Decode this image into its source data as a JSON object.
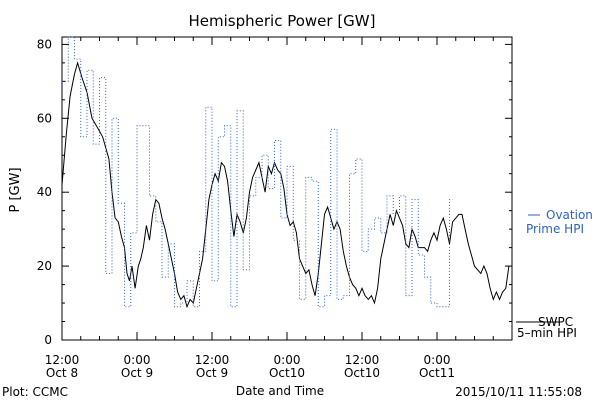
{
  "chart_data": {
    "type": "line",
    "title": "Hemispheric Power [GW]",
    "ylabel": "P [GW]",
    "xlabel": "Date and Time",
    "ylim": [
      0,
      82
    ],
    "yticks": [
      0,
      20,
      40,
      60,
      80
    ],
    "xlim": [
      0,
      72
    ],
    "x_unit": "hours after 2015-10-08 12:00",
    "xticks": [
      {
        "x": 0,
        "line1": "12:00",
        "line2": "Oct 8"
      },
      {
        "x": 12,
        "line1": "0:00",
        "line2": "Oct 9"
      },
      {
        "x": 24,
        "line1": "12:00",
        "line2": "Oct 9"
      },
      {
        "x": 36,
        "line1": "0:00",
        "line2": "Oct10"
      },
      {
        "x": 48,
        "line1": "12:00",
        "line2": "Oct10"
      },
      {
        "x": 60,
        "line1": "0:00",
        "line2": "Oct11"
      }
    ],
    "series": [
      {
        "name": "SWPC 5-min HPI",
        "label_line1": "SWPC",
        "label_line2": "5–min HPI",
        "color": "#000000",
        "style": "solid",
        "points": [
          [
            0,
            42
          ],
          [
            0.7,
            56
          ],
          [
            1.3,
            66
          ],
          [
            2,
            72
          ],
          [
            2.5,
            75
          ],
          [
            3.2,
            71
          ],
          [
            4,
            67
          ],
          [
            4.8,
            60
          ],
          [
            5.5,
            58
          ],
          [
            6.5,
            55
          ],
          [
            7.5,
            49
          ],
          [
            8,
            40
          ],
          [
            8.5,
            33
          ],
          [
            9,
            32
          ],
          [
            9.5,
            28
          ],
          [
            10,
            25
          ],
          [
            10.4,
            18
          ],
          [
            10.8,
            16
          ],
          [
            11.2,
            20
          ],
          [
            11.7,
            14
          ],
          [
            12.2,
            20
          ],
          [
            12.6,
            22
          ],
          [
            13,
            25
          ],
          [
            13.5,
            31
          ],
          [
            14,
            27
          ],
          [
            14.5,
            34
          ],
          [
            15,
            38
          ],
          [
            15.5,
            37
          ],
          [
            16,
            33
          ],
          [
            16.5,
            30
          ],
          [
            17,
            26
          ],
          [
            17.5,
            22
          ],
          [
            18,
            18
          ],
          [
            18.5,
            13
          ],
          [
            19,
            11
          ],
          [
            19.5,
            12
          ],
          [
            20,
            9
          ],
          [
            20.5,
            11
          ],
          [
            21,
            10
          ],
          [
            21.5,
            14
          ],
          [
            22,
            18
          ],
          [
            22.5,
            22
          ],
          [
            23,
            30
          ],
          [
            23.5,
            38
          ],
          [
            24,
            42
          ],
          [
            24.5,
            45
          ],
          [
            25,
            43
          ],
          [
            25.5,
            48
          ],
          [
            26,
            47
          ],
          [
            26.5,
            43
          ],
          [
            27,
            35
          ],
          [
            27.5,
            28
          ],
          [
            28,
            34
          ],
          [
            28.5,
            32
          ],
          [
            29,
            29
          ],
          [
            29.5,
            33
          ],
          [
            30,
            40
          ],
          [
            30.5,
            44
          ],
          [
            31,
            46
          ],
          [
            31.5,
            48
          ],
          [
            32,
            44
          ],
          [
            32.5,
            40
          ],
          [
            33,
            47
          ],
          [
            33.5,
            45
          ],
          [
            34,
            48
          ],
          [
            34.5,
            46
          ],
          [
            35,
            45
          ],
          [
            35.5,
            41
          ],
          [
            36,
            34
          ],
          [
            36.5,
            31
          ],
          [
            37,
            32
          ],
          [
            37.5,
            29
          ],
          [
            38,
            22
          ],
          [
            38.5,
            20
          ],
          [
            39,
            18
          ],
          [
            39.5,
            19
          ],
          [
            40,
            15
          ],
          [
            40.5,
            12
          ],
          [
            41,
            18
          ],
          [
            41.5,
            26
          ],
          [
            42,
            34
          ],
          [
            42.5,
            36
          ],
          [
            43,
            33
          ],
          [
            43.5,
            30
          ],
          [
            44,
            32
          ],
          [
            44.5,
            30
          ],
          [
            45,
            24
          ],
          [
            45.5,
            20
          ],
          [
            46,
            17
          ],
          [
            46.5,
            15
          ],
          [
            47,
            14
          ],
          [
            47.5,
            12
          ],
          [
            48,
            14
          ],
          [
            48.5,
            12
          ],
          [
            49,
            11
          ],
          [
            49.5,
            12
          ],
          [
            50,
            10
          ],
          [
            50.5,
            14
          ],
          [
            51,
            22
          ],
          [
            51.5,
            26
          ],
          [
            52,
            30
          ],
          [
            52.5,
            34
          ],
          [
            53,
            31
          ],
          [
            53.5,
            35
          ],
          [
            54,
            33
          ],
          [
            54.5,
            31
          ],
          [
            55,
            26
          ],
          [
            55.5,
            25
          ],
          [
            56,
            30
          ],
          [
            56.5,
            28
          ],
          [
            57,
            25
          ],
          [
            57.5,
            25
          ],
          [
            58,
            25
          ],
          [
            58.5,
            24
          ],
          [
            59,
            27
          ],
          [
            59.5,
            29
          ],
          [
            60,
            27
          ],
          [
            60.5,
            31
          ],
          [
            61,
            33
          ],
          [
            61.5,
            30
          ],
          [
            62,
            26
          ],
          [
            62.5,
            32
          ],
          [
            63,
            33
          ],
          [
            63.5,
            34
          ],
          [
            64,
            34
          ],
          [
            64.5,
            30
          ],
          [
            65,
            26
          ],
          [
            65.5,
            23
          ],
          [
            66,
            20
          ],
          [
            66.5,
            19
          ],
          [
            67,
            18
          ],
          [
            67.5,
            20
          ],
          [
            68,
            18
          ],
          [
            68.5,
            14
          ],
          [
            69,
            11
          ],
          [
            69.5,
            13
          ],
          [
            70,
            11
          ],
          [
            70.5,
            13
          ],
          [
            71,
            14
          ],
          [
            71.5,
            20
          ]
        ]
      },
      {
        "name": "Ovation Prime HPI",
        "label_line1": "Ovation",
        "label_line2": "Prime HPI",
        "color": "#2a62c9",
        "style": "dotted-step",
        "points": [
          [
            0,
            70
          ],
          [
            1,
            82
          ],
          [
            2,
            76
          ],
          [
            3,
            55
          ],
          [
            4,
            73
          ],
          [
            5,
            53
          ],
          [
            6,
            71
          ],
          [
            7,
            18
          ],
          [
            8,
            60
          ],
          [
            9,
            37
          ],
          [
            10,
            9
          ],
          [
            11,
            29
          ],
          [
            12,
            58
          ],
          [
            14,
            39
          ],
          [
            15,
            32
          ],
          [
            16,
            17
          ],
          [
            17,
            26
          ],
          [
            18,
            9
          ],
          [
            19,
            10
          ],
          [
            20,
            16
          ],
          [
            21,
            9
          ],
          [
            22,
            24
          ],
          [
            23,
            63
          ],
          [
            24,
            16
          ],
          [
            25,
            55
          ],
          [
            26,
            58
          ],
          [
            27,
            9
          ],
          [
            28,
            62
          ],
          [
            29,
            19
          ],
          [
            30,
            39
          ],
          [
            31,
            44
          ],
          [
            32,
            50
          ],
          [
            33,
            41
          ],
          [
            34,
            54
          ],
          [
            35,
            33
          ],
          [
            36,
            47
          ],
          [
            37,
            27
          ],
          [
            38,
            11
          ],
          [
            39,
            44
          ],
          [
            40,
            43
          ],
          [
            41,
            9
          ],
          [
            42,
            12
          ],
          [
            43,
            57
          ],
          [
            44,
            11
          ],
          [
            45,
            12
          ],
          [
            46,
            45
          ],
          [
            47,
            49
          ],
          [
            48,
            24
          ],
          [
            49,
            30
          ],
          [
            50,
            33
          ],
          [
            51,
            29
          ],
          [
            52,
            39
          ],
          [
            53,
            34
          ],
          [
            54,
            39
          ],
          [
            55,
            12
          ],
          [
            56,
            38
          ],
          [
            57,
            23
          ],
          [
            58,
            17
          ],
          [
            59,
            10
          ],
          [
            60,
            9
          ],
          [
            61,
            9
          ],
          [
            62,
            38
          ],
          [
            62.5,
            38
          ]
        ]
      }
    ],
    "grid": false,
    "legend": "right"
  },
  "footer": {
    "plot_credit": "Plot: CCMC",
    "timestamp": "2015/10/11 11:55:08"
  }
}
